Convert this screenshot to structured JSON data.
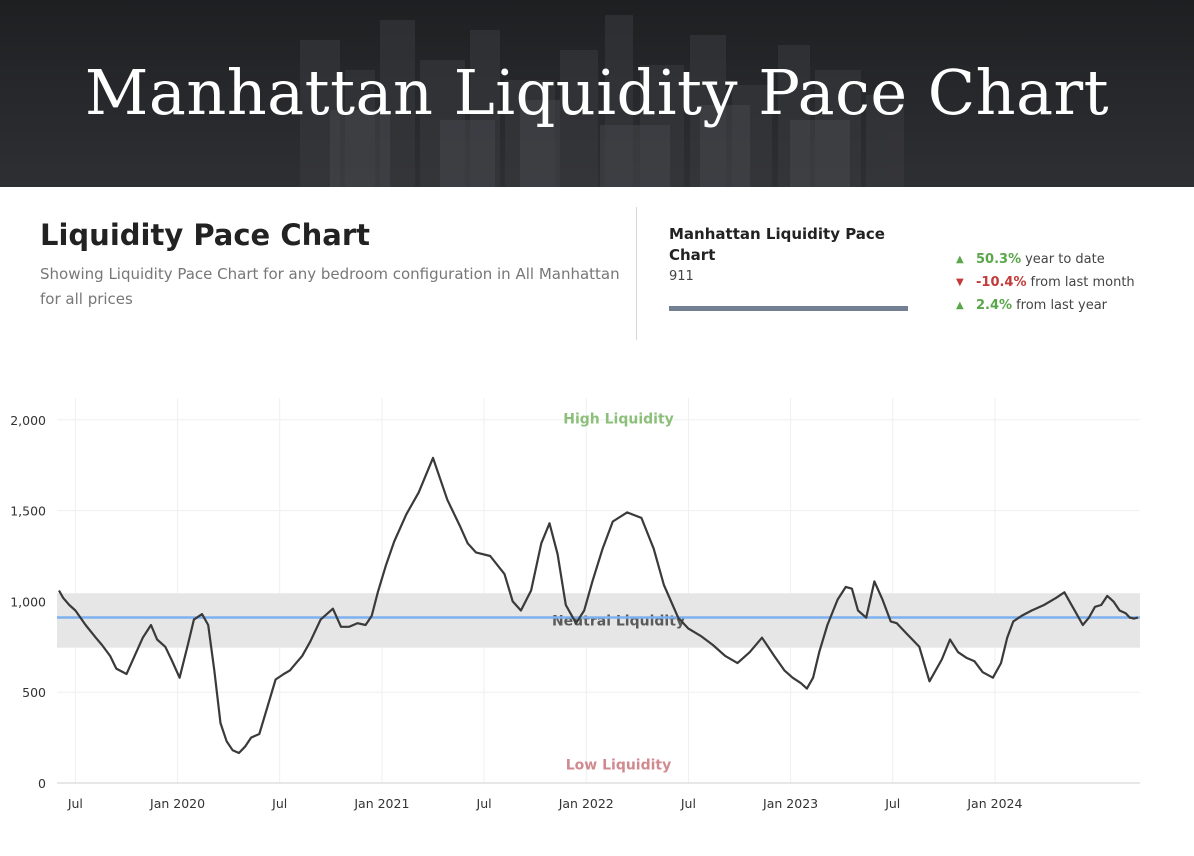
{
  "header": {
    "title": "Manhattan Liquidity Pace Chart"
  },
  "summary": {
    "title": "Liquidity Pace Chart",
    "description": "Showing Liquidity Pace Chart for any bedroom configuration in All Manhattan for all prices"
  },
  "metric": {
    "label": "Manhattan Liquidity Pace Chart",
    "value": "911",
    "stats": [
      {
        "direction": "up",
        "value": "50.3%",
        "label": "year to date"
      },
      {
        "direction": "down",
        "value": "-10.4%",
        "label": "from last month"
      },
      {
        "direction": "up",
        "value": "2.4%",
        "label": "from last year"
      }
    ]
  },
  "colors": {
    "up": "#5aa64a",
    "down": "#c43a3a",
    "line": "#3a3a3a",
    "current": "#7db0ee",
    "band": "#e6e6e6"
  },
  "chart_data": {
    "type": "line",
    "title": "",
    "xlabel": "",
    "ylabel": "",
    "ylim": [
      0,
      2175
    ],
    "yticks": [
      0,
      500,
      1000,
      1500,
      2000
    ],
    "ytick_labels": [
      "0",
      "500",
      "1,000",
      "1,500",
      "2,000"
    ],
    "x_range": [
      2019.41,
      2024.71
    ],
    "xticks": [
      2019.5,
      2020.0,
      2020.5,
      2021.0,
      2021.5,
      2022.0,
      2022.5,
      2023.0,
      2023.5,
      2024.0
    ],
    "xtick_labels": [
      "Jul",
      "Jan 2020",
      "Jul",
      "Jan 2021",
      "Jul",
      "Jan 2022",
      "Jul",
      "Jan 2023",
      "Jul",
      "Jan 2024"
    ],
    "annotations": {
      "high": "High Liquidity",
      "neutral": "Neutral Liquidity",
      "low": "Low Liquidity"
    },
    "neutral_band": [
      745,
      1045
    ],
    "current_value": 911,
    "series": [
      {
        "name": "Manhattan Liquidity Pace",
        "x": [
          2019.42,
          2019.44,
          2019.47,
          2019.5,
          2019.55,
          2019.6,
          2019.63,
          2019.67,
          2019.7,
          2019.75,
          2019.79,
          2019.83,
          2019.87,
          2019.9,
          2019.94,
          2019.97,
          2020.01,
          2020.05,
          2020.08,
          2020.12,
          2020.15,
          2020.18,
          2020.21,
          2020.24,
          2020.27,
          2020.3,
          2020.33,
          2020.36,
          2020.4,
          2020.44,
          2020.48,
          2020.52,
          2020.55,
          2020.58,
          2020.61,
          2020.65,
          2020.7,
          2020.76,
          2020.8,
          2020.84,
          2020.88,
          2020.92,
          2020.95,
          2020.98,
          2021.02,
          2021.06,
          2021.12,
          2021.18,
          2021.25,
          2021.32,
          2021.38,
          2021.42,
          2021.46,
          2021.53,
          2021.6,
          2021.64,
          2021.68,
          2021.73,
          2021.78,
          2021.82,
          2021.86,
          2021.9,
          2021.95,
          2021.99,
          2022.03,
          2022.08,
          2022.13,
          2022.2,
          2022.27,
          2022.33,
          2022.38,
          2022.45,
          2022.5,
          2022.56,
          2022.62,
          2022.68,
          2022.74,
          2022.8,
          2022.86,
          2022.92,
          2022.97,
          2023.01,
          2023.05,
          2023.08,
          2023.11,
          2023.14,
          2023.18,
          2023.23,
          2023.27,
          2023.3,
          2023.33,
          2023.37,
          2023.41,
          2023.45,
          2023.49,
          2023.52,
          2023.57,
          2023.63,
          2023.68,
          2023.74,
          2023.78,
          2023.82,
          2023.86,
          2023.9,
          2023.94,
          2023.99,
          2024.03,
          2024.06,
          2024.09,
          2024.13,
          2024.18,
          2024.24,
          2024.3,
          2024.34,
          2024.37,
          2024.4,
          2024.43,
          2024.46,
          2024.49,
          2024.52,
          2024.55,
          2024.58,
          2024.61,
          2024.64,
          2024.66,
          2024.68,
          2024.7
        ],
        "values": [
          1060,
          1020,
          980,
          950,
          870,
          800,
          760,
          700,
          630,
          600,
          700,
          800,
          870,
          790,
          750,
          680,
          580,
          760,
          900,
          930,
          870,
          620,
          330,
          230,
          180,
          165,
          200,
          250,
          270,
          420,
          570,
          600,
          620,
          660,
          700,
          780,
          900,
          960,
          860,
          860,
          880,
          870,
          920,
          1050,
          1200,
          1330,
          1480,
          1600,
          1790,
          1560,
          1420,
          1320,
          1270,
          1250,
          1150,
          1000,
          950,
          1060,
          1320,
          1430,
          1260,
          980,
          880,
          950,
          1110,
          1290,
          1440,
          1490,
          1460,
          1290,
          1090,
          910,
          850,
          810,
          760,
          700,
          660,
          720,
          800,
          700,
          620,
          580,
          550,
          520,
          580,
          720,
          870,
          1010,
          1080,
          1070,
          950,
          910,
          1110,
          1010,
          890,
          880,
          820,
          750,
          560,
          680,
          790,
          720,
          690,
          670,
          610,
          580,
          660,
          800,
          890,
          920,
          950,
          980,
          1020,
          1050,
          990,
          930,
          870,
          910,
          970,
          980,
          1030,
          1000,
          950,
          935,
          911,
          905,
          911
        ]
      }
    ]
  }
}
